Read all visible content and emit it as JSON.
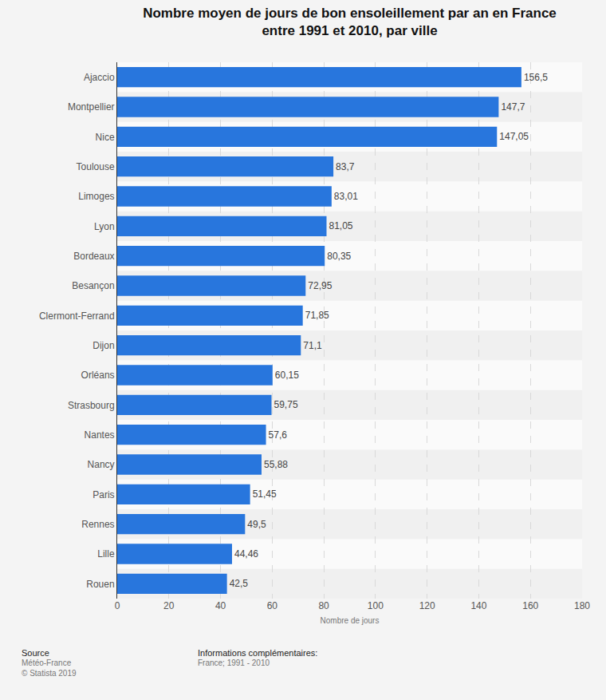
{
  "chart_data": {
    "type": "bar",
    "orientation": "horizontal",
    "title": "Nombre moyen de jours de bon ensoleillement par an en France entre 1991 et 2010, par ville",
    "x_label": "Nombre de jours",
    "categories": [
      "Ajaccio",
      "Montpellier",
      "Nice",
      "Toulouse",
      "Limoges",
      "Lyon",
      "Bordeaux",
      "Besançon",
      "Clermont-Ferrand",
      "Dijon",
      "Orléans",
      "Strasbourg",
      "Nantes",
      "Nancy",
      "Paris",
      "Rennes",
      "Lille",
      "Rouen"
    ],
    "values": [
      156.5,
      147.7,
      147.05,
      83.7,
      83.01,
      81.05,
      80.35,
      72.95,
      71.85,
      71.1,
      60.15,
      59.75,
      57.6,
      55.88,
      51.45,
      49.5,
      44.46,
      42.5
    ],
    "value_labels": [
      "156,5",
      "147,7",
      "147,05",
      "83,7",
      "83,01",
      "81,05",
      "80,35",
      "72,95",
      "71,85",
      "71,1",
      "60,15",
      "59,75",
      "57,6",
      "55,88",
      "51,45",
      "49,5",
      "44,46",
      "42,5"
    ],
    "data_labels": true,
    "color": "#2876dd",
    "xlim": [
      0,
      180
    ],
    "xticks": [
      0,
      20,
      40,
      60,
      80,
      100,
      120,
      140,
      160,
      180
    ],
    "grid": true,
    "annotations": [
      "Source",
      "Météo-France",
      "© Statista 2019",
      "Informations complémentaires:",
      "France; 1991 - 2010"
    ]
  }
}
